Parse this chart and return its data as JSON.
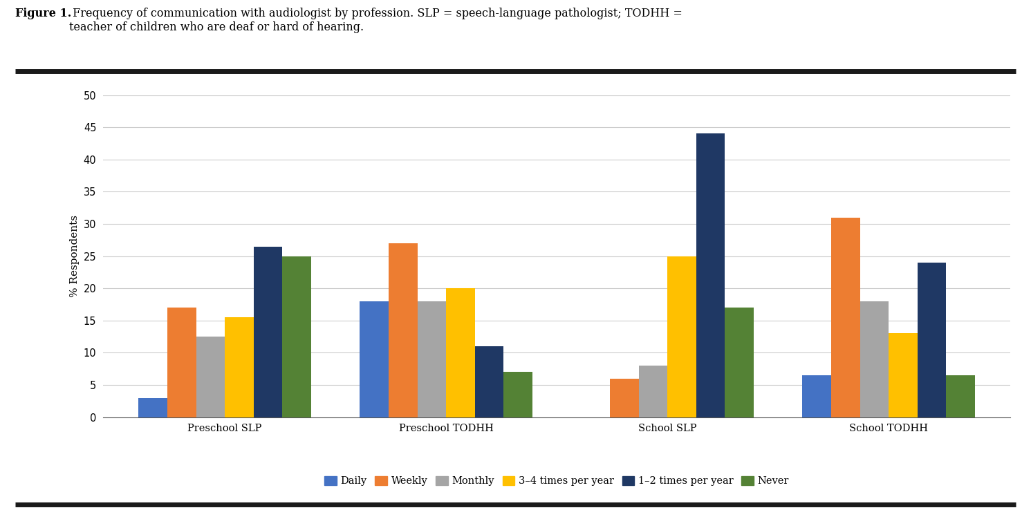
{
  "categories": [
    "Preschool SLP",
    "Preschool TODHH",
    "School SLP",
    "School TODHH"
  ],
  "series": {
    "Daily": [
      3,
      18,
      0,
      6.5
    ],
    "Weekly": [
      17,
      27,
      6,
      31
    ],
    "Monthly": [
      12.5,
      18,
      8,
      18
    ],
    "3-4 times per year": [
      15.5,
      20,
      25,
      13
    ],
    "1-2 times per year": [
      26.5,
      11,
      44,
      24
    ],
    "Never": [
      25,
      7,
      17,
      6.5
    ]
  },
  "colors": {
    "Daily": "#4472C4",
    "Weekly": "#ED7D31",
    "Monthly": "#A5A5A5",
    "3-4 times per year": "#FFC000",
    "1-2 times per year": "#1F3864",
    "Never": "#548235"
  },
  "legend_labels": [
    "Daily",
    "Weekly",
    "Monthly",
    "3–4 times per year",
    "1–2 times per year",
    "Never"
  ],
  "legend_keys": [
    "Daily",
    "Weekly",
    "Monthly",
    "3-4 times per year",
    "1-2 times per year",
    "Never"
  ],
  "ylabel": "% Respondents",
  "ylim": [
    0,
    50
  ],
  "yticks": [
    0,
    5,
    10,
    15,
    20,
    25,
    30,
    35,
    40,
    45,
    50
  ],
  "figure_caption_bold": "Figure 1.",
  "figure_caption_normal": " Frequency of communication with audiologist by profession. SLP = speech-language pathologist; TODHH =\nteacher of children who are deaf or hard of hearing.",
  "bar_width": 0.13,
  "background_color": "#FFFFFF",
  "caption_fontsize": 11.5,
  "axis_fontsize": 11,
  "tick_fontsize": 10.5,
  "legend_fontsize": 10.5
}
